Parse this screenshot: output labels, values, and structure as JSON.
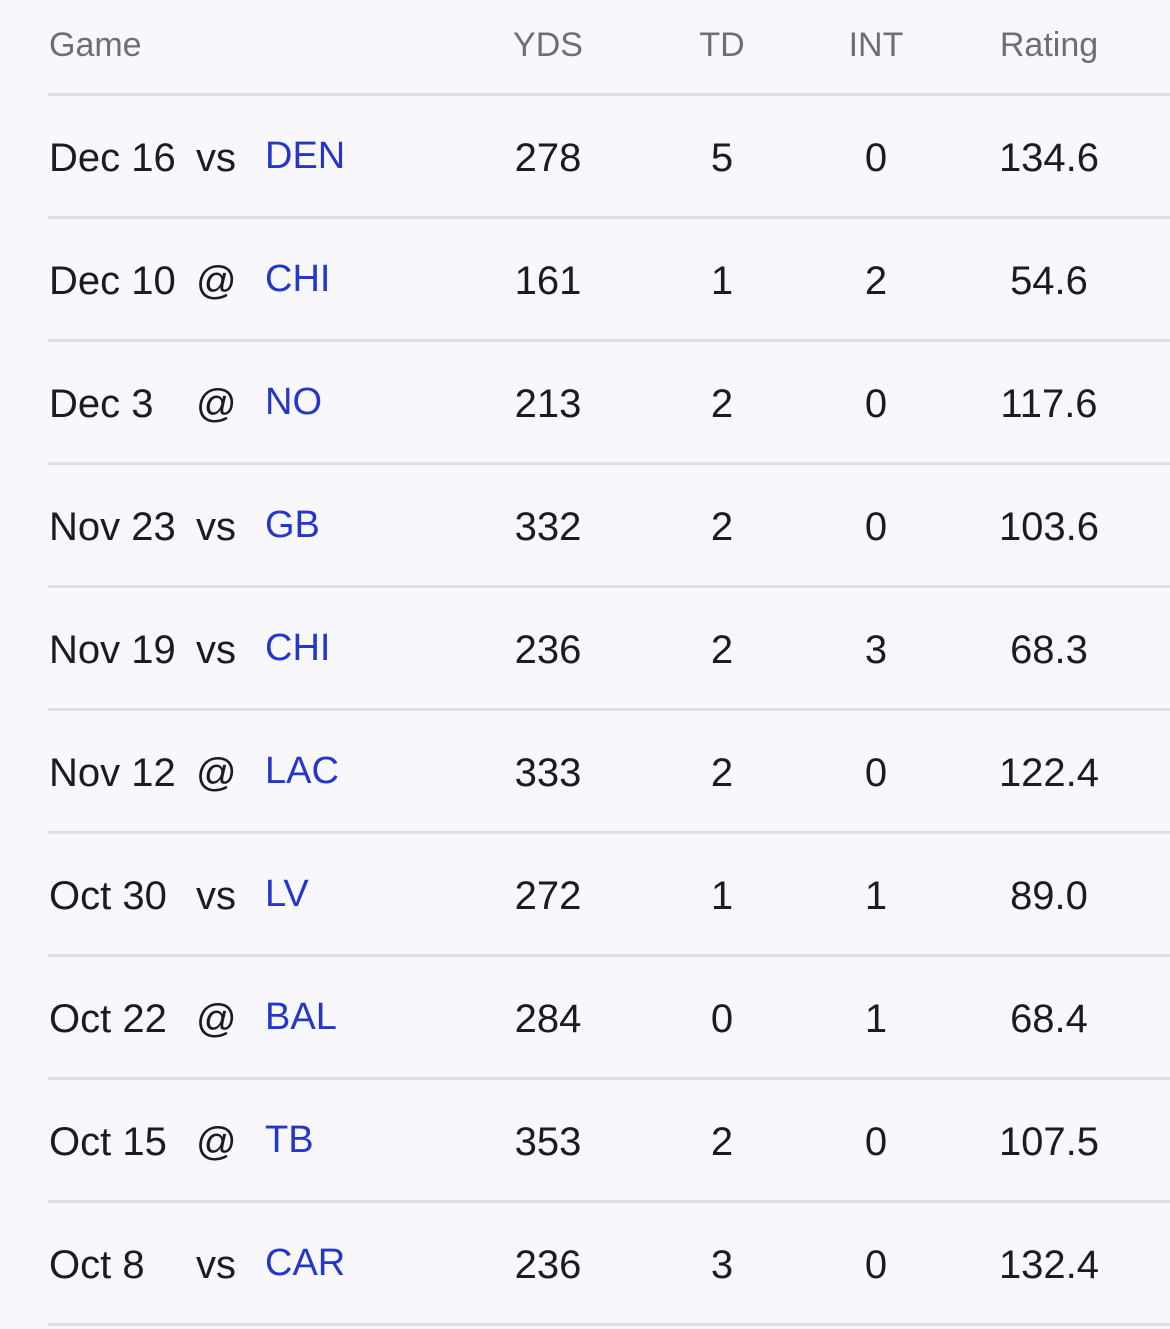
{
  "header": {
    "game": "Game",
    "yds": "YDS",
    "td": "TD",
    "int": "INT",
    "rating": "Rating"
  },
  "rows": [
    {
      "date": "Dec 16",
      "loc": "vs",
      "opp": "DEN",
      "yds": "278",
      "td": "5",
      "int": "0",
      "rating": "134.6"
    },
    {
      "date": "Dec 10",
      "loc": "@",
      "opp": "CHI",
      "yds": "161",
      "td": "1",
      "int": "2",
      "rating": "54.6"
    },
    {
      "date": "Dec 3",
      "loc": "@",
      "opp": "NO",
      "yds": "213",
      "td": "2",
      "int": "0",
      "rating": "117.6"
    },
    {
      "date": "Nov 23",
      "loc": "vs",
      "opp": "GB",
      "yds": "332",
      "td": "2",
      "int": "0",
      "rating": "103.6"
    },
    {
      "date": "Nov 19",
      "loc": "vs",
      "opp": "CHI",
      "yds": "236",
      "td": "2",
      "int": "3",
      "rating": "68.3"
    },
    {
      "date": "Nov 12",
      "loc": "@",
      "opp": "LAC",
      "yds": "333",
      "td": "2",
      "int": "0",
      "rating": "122.4"
    },
    {
      "date": "Oct 30",
      "loc": "vs",
      "opp": "LV",
      "yds": "272",
      "td": "1",
      "int": "1",
      "rating": "89.0"
    },
    {
      "date": "Oct 22",
      "loc": "@",
      "opp": "BAL",
      "yds": "284",
      "td": "0",
      "int": "1",
      "rating": "68.4"
    },
    {
      "date": "Oct 15",
      "loc": "@",
      "opp": "TB",
      "yds": "353",
      "td": "2",
      "int": "0",
      "rating": "107.5"
    },
    {
      "date": "Oct 8",
      "loc": "vs",
      "opp": "CAR",
      "yds": "236",
      "td": "3",
      "int": "0",
      "rating": "132.4"
    }
  ]
}
